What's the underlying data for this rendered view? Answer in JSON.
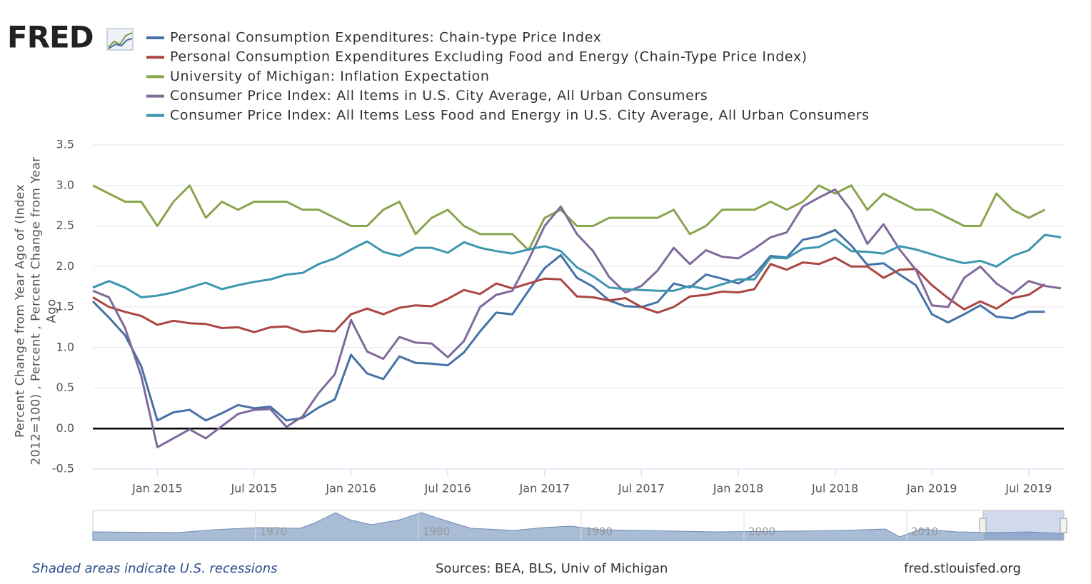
{
  "logo": "FRED",
  "chart_data": {
    "type": "line",
    "y_label": "Percent Change from Year Ago of (Index 2012=100) , Percent , Percent Change from Year Ago",
    "x": [
      "2014-09",
      "2014-10",
      "2014-11",
      "2014-12",
      "2015-01",
      "2015-02",
      "2015-03",
      "2015-04",
      "2015-05",
      "2015-06",
      "2015-07",
      "2015-08",
      "2015-09",
      "2015-10",
      "2015-11",
      "2015-12",
      "2016-01",
      "2016-02",
      "2016-03",
      "2016-04",
      "2016-05",
      "2016-06",
      "2016-07",
      "2016-08",
      "2016-09",
      "2016-10",
      "2016-11",
      "2016-12",
      "2017-01",
      "2017-02",
      "2017-03",
      "2017-04",
      "2017-05",
      "2017-06",
      "2017-07",
      "2017-08",
      "2017-09",
      "2017-10",
      "2017-11",
      "2017-12",
      "2018-01",
      "2018-02",
      "2018-03",
      "2018-04",
      "2018-05",
      "2018-06",
      "2018-07",
      "2018-08",
      "2018-09",
      "2018-10",
      "2018-11",
      "2018-12",
      "2019-01",
      "2019-02",
      "2019-03",
      "2019-04",
      "2019-05",
      "2019-06",
      "2019-07",
      "2019-08",
      "2019-09"
    ],
    "xticks": [
      {
        "value": "2015-01",
        "label": "Jan 2015"
      },
      {
        "value": "2015-07",
        "label": "Jul 2015"
      },
      {
        "value": "2016-01",
        "label": "Jan 2016"
      },
      {
        "value": "2016-07",
        "label": "Jul 2016"
      },
      {
        "value": "2017-01",
        "label": "Jan 2017"
      },
      {
        "value": "2017-07",
        "label": "Jul 2017"
      },
      {
        "value": "2018-01",
        "label": "Jan 2018"
      },
      {
        "value": "2018-07",
        "label": "Jul 2018"
      },
      {
        "value": "2019-01",
        "label": "Jan 2019"
      },
      {
        "value": "2019-07",
        "label": "Jul 2019"
      }
    ],
    "ylim": [
      -0.5,
      3.5
    ],
    "yticks": [
      -0.5,
      {
        "value": 0,
        "label": "0.0"
      },
      0.5,
      {
        "value": 1,
        "label": "1.0"
      },
      1.5,
      {
        "value": 2,
        "label": "2.0"
      },
      2.5,
      {
        "value": 3,
        "label": "3.0"
      },
      3.5
    ],
    "grid": true,
    "series": [
      {
        "name": "Personal Consumption Expenditures: Chain-type Price Index",
        "color": "#4572a7",
        "values": [
          1.57,
          1.37,
          1.15,
          0.77,
          0.1,
          0.2,
          0.23,
          0.1,
          0.19,
          0.29,
          0.25,
          0.27,
          0.1,
          0.13,
          0.26,
          0.36,
          0.91,
          0.68,
          0.61,
          0.89,
          0.81,
          0.8,
          0.78,
          0.94,
          1.2,
          1.43,
          1.41,
          1.7,
          1.98,
          2.14,
          1.86,
          1.75,
          1.58,
          1.51,
          1.5,
          1.56,
          1.79,
          1.74,
          1.9,
          1.85,
          1.79,
          1.9,
          2.13,
          2.11,
          2.33,
          2.37,
          2.45,
          2.26,
          2.02,
          2.04,
          1.9,
          1.77,
          1.41,
          1.31,
          1.41,
          1.52,
          1.38,
          1.36,
          1.44,
          1.44,
          null
        ]
      },
      {
        "name": "Personal Consumption Expenditures Excluding Food and Energy (Chain-Type Price Index)",
        "color": "#aa4643",
        "values": [
          1.62,
          1.5,
          1.44,
          1.39,
          1.28,
          1.33,
          1.3,
          1.29,
          1.24,
          1.25,
          1.19,
          1.25,
          1.26,
          1.19,
          1.21,
          1.2,
          1.41,
          1.48,
          1.41,
          1.49,
          1.52,
          1.51,
          1.6,
          1.71,
          1.66,
          1.79,
          1.73,
          1.79,
          1.85,
          1.84,
          1.63,
          1.62,
          1.58,
          1.61,
          1.5,
          1.43,
          1.5,
          1.63,
          1.65,
          1.69,
          1.68,
          1.72,
          2.03,
          1.96,
          2.05,
          2.03,
          2.11,
          2.0,
          2.0,
          1.86,
          1.96,
          1.97,
          1.77,
          1.61,
          1.47,
          1.57,
          1.48,
          1.61,
          1.65,
          1.78,
          null
        ]
      },
      {
        "name": "University of Michigan: Inflation Expectation",
        "color": "#89a54e",
        "values": [
          3.0,
          2.9,
          2.8,
          2.8,
          2.5,
          2.8,
          3.0,
          2.6,
          2.8,
          2.7,
          2.8,
          2.8,
          2.8,
          2.7,
          2.7,
          2.6,
          2.5,
          2.5,
          2.7,
          2.8,
          2.4,
          2.6,
          2.7,
          2.5,
          2.4,
          2.4,
          2.4,
          2.2,
          2.6,
          2.7,
          2.5,
          2.5,
          2.6,
          2.6,
          2.6,
          2.6,
          2.7,
          2.4,
          2.5,
          2.7,
          2.7,
          2.7,
          2.8,
          2.7,
          2.8,
          3.0,
          2.9,
          3.0,
          2.7,
          2.9,
          2.8,
          2.7,
          2.7,
          2.6,
          2.5,
          2.5,
          2.9,
          2.7,
          2.6,
          2.7,
          null
        ]
      },
      {
        "name": "Consumer Price Index: All Items in U.S. City Average, All Urban Consumers",
        "color": "#80699b",
        "values": [
          1.7,
          1.62,
          1.24,
          0.65,
          -0.23,
          -0.12,
          -0.01,
          -0.12,
          0.03,
          0.18,
          0.23,
          0.24,
          0.02,
          0.15,
          0.44,
          0.67,
          1.34,
          0.95,
          0.86,
          1.13,
          1.06,
          1.05,
          0.88,
          1.08,
          1.5,
          1.65,
          1.7,
          2.08,
          2.5,
          2.74,
          2.4,
          2.19,
          1.87,
          1.68,
          1.76,
          1.95,
          2.23,
          2.03,
          2.2,
          2.12,
          2.1,
          2.22,
          2.36,
          2.42,
          2.74,
          2.85,
          2.95,
          2.69,
          2.28,
          2.52,
          2.21,
          1.96,
          1.52,
          1.5,
          1.86,
          2.0,
          1.79,
          1.66,
          1.82,
          1.76,
          1.73
        ]
      },
      {
        "name": "Consumer Price Index: All Items Less Food and Energy in U.S. City Average, All Urban Consumers",
        "color": "#3d96ae",
        "values": [
          1.74,
          1.82,
          1.74,
          1.62,
          1.64,
          1.68,
          1.74,
          1.8,
          1.72,
          1.77,
          1.81,
          1.84,
          1.9,
          1.92,
          2.03,
          2.1,
          2.21,
          2.31,
          2.18,
          2.13,
          2.23,
          2.23,
          2.17,
          2.3,
          2.23,
          2.19,
          2.16,
          2.21,
          2.25,
          2.19,
          1.99,
          1.88,
          1.74,
          1.72,
          1.71,
          1.7,
          1.7,
          1.76,
          1.72,
          1.78,
          1.84,
          1.84,
          2.11,
          2.1,
          2.22,
          2.24,
          2.34,
          2.19,
          2.18,
          2.16,
          2.25,
          2.21,
          2.15,
          2.09,
          2.04,
          2.07,
          2.0,
          2.13,
          2.2,
          2.39,
          2.36
        ]
      }
    ],
    "navigator_ticks": [
      1970,
      1980,
      1990,
      2000,
      2010
    ]
  },
  "footer": {
    "note": "Shaded areas indicate U.S. recessions",
    "sources": "Sources: BEA, BLS, Univ of Michigan",
    "site": "fred.stlouisfed.org"
  }
}
